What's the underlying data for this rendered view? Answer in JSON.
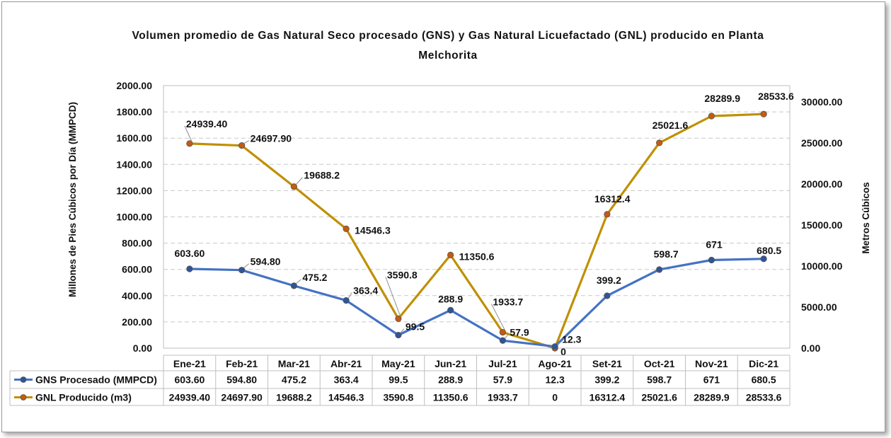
{
  "chart_data": {
    "type": "line",
    "title": "Volumen promedio de Gas Natural Seco procesado (GNS) y Gas Natural Licuefactado (GNL) producido en Planta Melchorita",
    "title_lines": [
      "Volumen promedio de Gas Natural Seco procesado (GNS) y Gas Natural Licuefactado (GNL) producido en Planta",
      "Melchorita"
    ],
    "categories": [
      "Ene-21",
      "Feb-21",
      "Mar-21",
      "Abr-21",
      "May-21",
      "Jun-21",
      "Jul-21",
      "Ago-21",
      "Set-21",
      "Oct-21",
      "Nov-21",
      "Dic-21"
    ],
    "ylabel_left": "Millones de Pies Cúbicos por Día (MMPCD)",
    "ylabel_right": "Metros Cúbicos",
    "ylim_left": [
      0,
      2000
    ],
    "ylim_right": [
      0,
      32000
    ],
    "yticks_left": [
      "0.00",
      "200.00",
      "400.00",
      "600.00",
      "800.00",
      "1000.00",
      "1200.00",
      "1400.00",
      "1600.00",
      "1800.00",
      "2000.00"
    ],
    "yticks_right": [
      "0.00",
      "5000.00",
      "10000.00",
      "15000.00",
      "20000.00",
      "25000.00",
      "30000.00"
    ],
    "grid": true,
    "series": [
      {
        "name": "GNS Procesado (MMPCD)",
        "axis": "left",
        "color": "#4472c4",
        "marker_color": "#2f5597",
        "values": [
          603.6,
          594.8,
          475.2,
          363.4,
          99.5,
          288.9,
          57.9,
          12.3,
          399.2,
          598.7,
          671,
          680.5
        ],
        "labels": [
          "603.60",
          "594.80",
          "475.2",
          "363.4",
          "99.5",
          "288.9",
          "57.9",
          "12.3",
          "399.2",
          "598.7",
          "671",
          "680.5"
        ]
      },
      {
        "name": "GNL Producido (m3)",
        "axis": "right",
        "color": "#bf9000",
        "marker_color": "#c55a11",
        "values": [
          24939.4,
          24697.9,
          19688.2,
          14546.3,
          3590.8,
          11350.6,
          1933.7,
          0,
          16312.4,
          25021.6,
          28289.9,
          28533.6
        ],
        "labels": [
          "24939.40",
          "24697.90",
          "19688.2",
          "14546.3",
          "3590.8",
          "11350.6",
          "1933.7",
          "0",
          "16312.4",
          "25021.6",
          "28289.9",
          "28533.6"
        ]
      }
    ]
  }
}
